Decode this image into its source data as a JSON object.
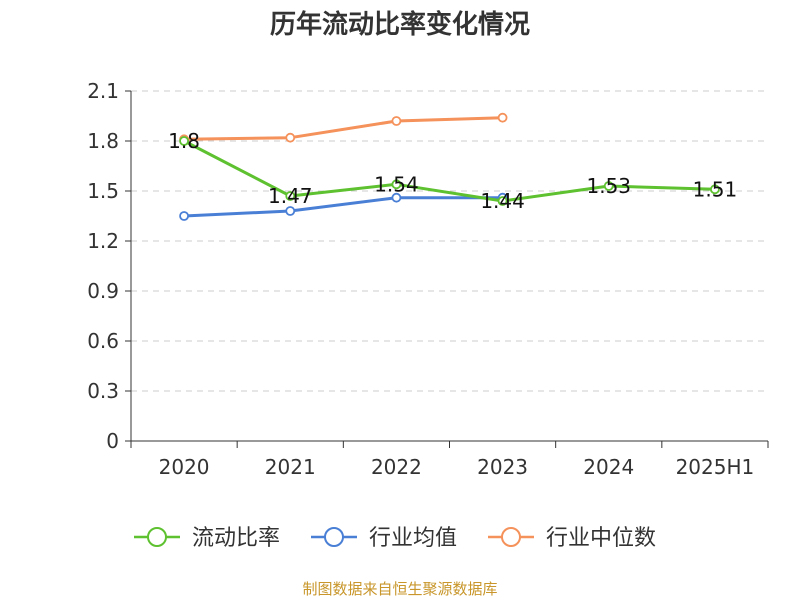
{
  "chart_data": {
    "type": "line",
    "title": "历年流动比率变化情况",
    "categories": [
      "2020",
      "2021",
      "2022",
      "2023",
      "2024",
      "2025H1"
    ],
    "ylim": [
      0,
      2.1
    ],
    "yticks": [
      "0",
      "0.3",
      "0.6",
      "0.9",
      "1.2",
      "1.5",
      "1.8",
      "2.1"
    ],
    "grid": true,
    "legend_position": "bottom",
    "series": [
      {
        "name": "流动比率",
        "color": "#5ec12f",
        "values": [
          1.8,
          1.47,
          1.54,
          1.44,
          1.53,
          1.51
        ],
        "labels": [
          "1.8",
          "1.47",
          "1.54",
          "1.44",
          "1.53",
          "1.51"
        ]
      },
      {
        "name": "行业均值",
        "color": "#4a7fd6",
        "values": [
          1.35,
          1.38,
          1.46,
          1.46,
          null,
          null
        ]
      },
      {
        "name": "行业中位数",
        "color": "#f5915a",
        "values": [
          1.81,
          1.82,
          1.92,
          1.94,
          null,
          null
        ]
      }
    ]
  },
  "footer": {
    "source": "制图数据来自恒生聚源数据库"
  }
}
